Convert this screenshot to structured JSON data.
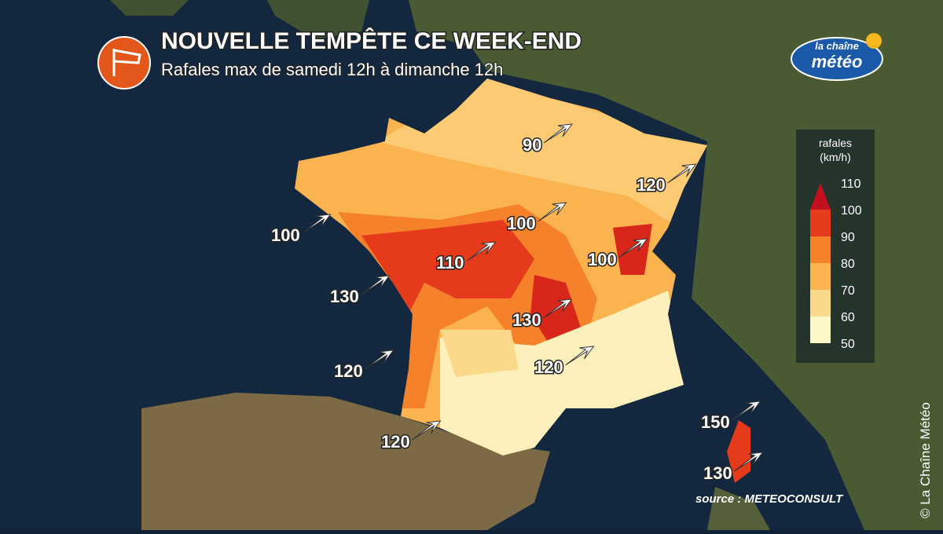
{
  "header": {
    "title": "NOUVELLE TEMPÊTE CE WEEK-END",
    "subtitle": "Rafales max de samedi 12h à dimanche 12h"
  },
  "logo": {
    "top": "la chaîne",
    "bottom": "météo"
  },
  "legend": {
    "title": [
      "rafales",
      "(km/h)"
    ],
    "ticks": [
      50,
      60,
      70,
      80,
      90,
      100,
      110
    ],
    "colors": [
      "#fdf6c6",
      "#fcd98a",
      "#fbb350",
      "#f5822b",
      "#e63a1c",
      "#c3101f"
    ]
  },
  "gusts": [
    90,
    120,
    100,
    100,
    110,
    100,
    130,
    130,
    120,
    120,
    120,
    150,
    130
  ],
  "source": "source : METEOCONSULT",
  "credit": "© La Chaîne Météo"
}
